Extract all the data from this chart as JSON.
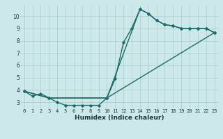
{
  "xlabel": "Humidex (Indice chaleur)",
  "bg_color": "#cce8e8",
  "line_color": "#1a6b6b",
  "xlim": [
    -0.5,
    23.5
  ],
  "ylim": [
    2.5,
    10.85
  ],
  "xticks": [
    0,
    1,
    2,
    3,
    4,
    5,
    6,
    7,
    8,
    9,
    10,
    11,
    12,
    13,
    14,
    15,
    16,
    17,
    18,
    19,
    20,
    21,
    22,
    23
  ],
  "yticks": [
    3,
    4,
    5,
    6,
    7,
    8,
    9,
    10
  ],
  "line1_x": [
    0,
    1,
    2,
    3,
    4,
    5,
    6,
    7,
    8,
    9,
    10,
    11,
    12,
    13,
    14,
    15,
    16,
    17,
    18,
    19,
    20,
    21,
    22,
    23
  ],
  "line1_y": [
    3.9,
    3.5,
    3.7,
    3.35,
    3.0,
    2.75,
    2.75,
    2.75,
    2.75,
    2.75,
    3.35,
    4.9,
    7.85,
    9.0,
    10.55,
    10.2,
    9.65,
    9.3,
    9.2,
    9.0,
    9.0,
    9.0,
    9.0,
    8.65
  ],
  "line2_x": [
    0,
    3,
    10,
    14,
    15,
    16,
    17,
    18,
    19,
    20,
    21,
    22,
    23
  ],
  "line2_y": [
    3.9,
    3.35,
    3.35,
    10.55,
    10.2,
    9.65,
    9.3,
    9.2,
    9.0,
    9.0,
    9.0,
    9.0,
    8.65
  ],
  "line3_x": [
    0,
    3,
    10,
    23
  ],
  "line3_y": [
    3.9,
    3.35,
    3.35,
    8.65
  ],
  "grid_color": "#aacccc",
  "markersize": 2.2,
  "linewidth": 1.0,
  "tick_fontsize": 5.0,
  "xlabel_fontsize": 6.5
}
